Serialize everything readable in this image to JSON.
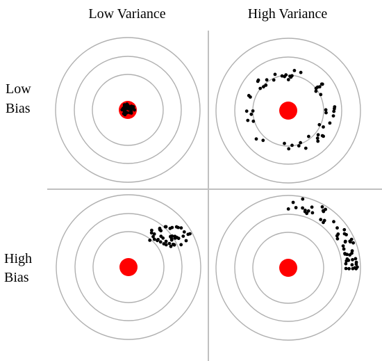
{
  "headers": {
    "low_variance": "Low Variance",
    "high_variance": "High Variance"
  },
  "rows": {
    "low_bias_line1": "Low",
    "low_bias_line2": "Bias",
    "high_bias_line1": "High",
    "high_bias_line2": "Bias"
  },
  "colors": {
    "ring": "#b0b0b0",
    "divider": "#c0c0c0",
    "bullseye": "#ff0000",
    "dot": "#000000",
    "background": "#ffffff"
  },
  "targets": [
    {
      "id": "low-bias-low-variance",
      "dot_count": 40
    },
    {
      "id": "low-bias-high-variance",
      "dot_count": 55
    },
    {
      "id": "high-bias-low-variance",
      "dot_count": 45
    },
    {
      "id": "high-bias-high-variance",
      "dot_count": 55
    }
  ]
}
